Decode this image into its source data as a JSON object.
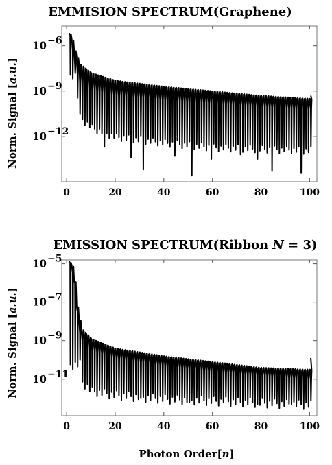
{
  "chart_data": [
    {
      "type": "line",
      "title": "EMMISION SPECTRUM(Graphene)",
      "ylabel": "Norm. Signal [a.u.]",
      "xlabel": "",
      "y_scale": "log",
      "xlim": [
        -2,
        103
      ],
      "ylim_exp": [
        -15,
        -4.7
      ],
      "x_ticks": [
        0,
        20,
        40,
        60,
        80,
        100
      ],
      "y_ticks": [
        {
          "exp": -6,
          "label": "10",
          "sup": "−6"
        },
        {
          "exp": -9,
          "label": "10",
          "sup": "−9"
        },
        {
          "exp": -12,
          "label": "10",
          "sup": "−12"
        }
      ],
      "envelope": {
        "upper_exp": [
          [
            1,
            -5.2
          ],
          [
            2,
            -5.6
          ],
          [
            3,
            -6.3
          ],
          [
            5,
            -7.2
          ],
          [
            10,
            -7.8
          ],
          [
            20,
            -8.3
          ],
          [
            40,
            -8.7
          ],
          [
            60,
            -9.0
          ],
          [
            80,
            -9.3
          ],
          [
            100,
            -9.5
          ]
        ],
        "base_exp": [
          [
            1,
            -5.3
          ],
          [
            3,
            -7.3
          ],
          [
            5,
            -8.4
          ],
          [
            10,
            -8.9
          ],
          [
            20,
            -9.3
          ],
          [
            40,
            -9.6
          ],
          [
            60,
            -9.8
          ],
          [
            80,
            -10.0
          ],
          [
            100,
            -10.2
          ]
        ],
        "dip_exp": [
          [
            3,
            -7.7
          ],
          [
            5,
            -10.5
          ],
          [
            10,
            -11.2
          ],
          [
            20,
            -11.8
          ],
          [
            40,
            -12.2
          ],
          [
            60,
            -12.5
          ],
          [
            80,
            -12.6
          ],
          [
            100,
            -12.7
          ]
        ],
        "deep_dips": [
          [
            15,
            -12.7
          ],
          [
            26,
            -13.4
          ],
          [
            31,
            -14.2
          ],
          [
            44,
            -13.3
          ],
          [
            51,
            -14.6
          ],
          [
            59,
            -13.5
          ],
          [
            71,
            -13.2
          ],
          [
            78,
            -13.5
          ],
          [
            84,
            -14.3
          ],
          [
            96,
            -14.4
          ]
        ]
      },
      "end_point": {
        "x": 100.5,
        "exp": -9.3
      }
    },
    {
      "type": "line",
      "title": "EMISSION SPECTRUM(Ribbon N = 3)",
      "title_parts": [
        "EMISSION SPECTRUM(Ribbon ",
        "N",
        " = 3)"
      ],
      "ylabel": "Norm. Signal [a.u.]",
      "xlabel": "Photon Order[n]",
      "xlabel_parts": [
        "Photon Order[",
        "n",
        "]"
      ],
      "y_scale": "log",
      "xlim": [
        -2,
        103
      ],
      "ylim_exp": [
        -12.9,
        -4.8
      ],
      "x_ticks": [
        0,
        20,
        40,
        60,
        80,
        100
      ],
      "y_ticks": [
        {
          "exp": -5,
          "label": "10",
          "sup": "−5"
        },
        {
          "exp": -7,
          "label": "10",
          "sup": "−7"
        },
        {
          "exp": -9,
          "label": "10",
          "sup": "−9"
        },
        {
          "exp": -11,
          "label": "10",
          "sup": "−11"
        }
      ],
      "envelope": {
        "upper_exp": [
          [
            1,
            -4.9
          ],
          [
            2,
            -5.1
          ],
          [
            3,
            -5.9
          ],
          [
            4,
            -7.2
          ],
          [
            5,
            -7.9
          ],
          [
            6,
            -8.4
          ],
          [
            10,
            -8.9
          ],
          [
            20,
            -9.4
          ],
          [
            40,
            -9.8
          ],
          [
            60,
            -10.1
          ],
          [
            80,
            -10.4
          ],
          [
            100,
            -10.5
          ]
        ],
        "base_exp": [
          [
            1,
            -4.95
          ],
          [
            3,
            -6.0
          ],
          [
            4,
            -7.5
          ],
          [
            5,
            -8.6
          ],
          [
            6,
            -9.0
          ],
          [
            10,
            -9.5
          ],
          [
            20,
            -9.9
          ],
          [
            40,
            -10.3
          ],
          [
            60,
            -10.6
          ],
          [
            80,
            -10.8
          ],
          [
            100,
            -11.0
          ]
        ],
        "dip_exp": [
          [
            5,
            -10.0
          ],
          [
            6,
            -10.9
          ],
          [
            10,
            -11.4
          ],
          [
            20,
            -11.6
          ],
          [
            40,
            -11.8
          ],
          [
            60,
            -11.9
          ],
          [
            80,
            -12.0
          ],
          [
            100,
            -12.1
          ]
        ],
        "deep_dips": [
          [
            12,
            -11.9
          ],
          [
            30,
            -12.0
          ],
          [
            50,
            -12.2
          ],
          [
            64,
            -12.2
          ],
          [
            78,
            -12.3
          ],
          [
            92,
            -12.3
          ]
        ]
      },
      "end_point": {
        "x": 100.5,
        "exp": -9.9
      }
    }
  ]
}
